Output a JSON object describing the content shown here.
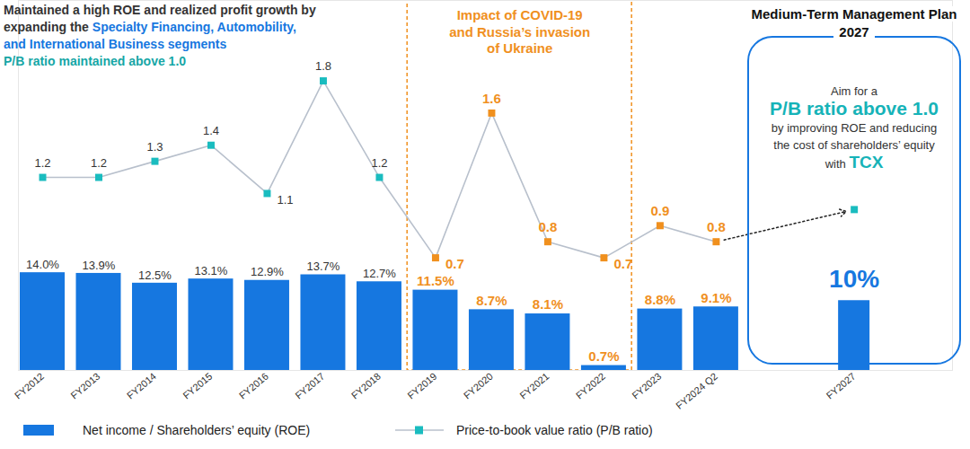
{
  "chart_data": {
    "type": "bar",
    "headline": [
      [
        {
          "text": "Maintained a high ROE and realized profit growth by expanding the"
        },
        {
          "text": "Specialty Financing, Automobility, and International Business segments",
          "color": "#1677e0"
        }
      ],
      [
        {
          "text": "P/B ratio maintained above 1.0",
          "color": "#16a6a6"
        }
      ]
    ],
    "period_annotation": {
      "text": [
        "Impact of COVID-19",
        "and Russia’s invasion",
        "of Ukraine"
      ],
      "categories": [
        "FY2019",
        "FY2022"
      ],
      "color": "#f0901e"
    },
    "plan_annotation": {
      "category": "FY2027",
      "title": [
        "Medium-Term Management Plan",
        "2027"
      ],
      "color": "#1677e0",
      "lines": [
        [
          {
            "text": "Aim for a"
          }
        ],
        [
          {
            "text": "P/B ratio above 1.0",
            "color": "#16b3b8"
          }
        ],
        [
          {
            "text": "by improving ROE and reducing"
          }
        ],
        [
          {
            "text": "the cost of shareholders’ equity"
          }
        ],
        [
          {
            "text": "with"
          },
          {
            "text": "TCX",
            "color": "#16b3b8"
          }
        ]
      ]
    },
    "categories": [
      "FY2012",
      "FY2013",
      "FY2014",
      "FY2015",
      "FY2016",
      "FY2017",
      "FY2018",
      "FY2019",
      "FY2020",
      "FY2021",
      "FY2022",
      "FY2023",
      "FY2024 Q2",
      "FY2027"
    ],
    "series": [
      {
        "name": "Net income / Shareholders’ equity (ROE)",
        "type": "bar",
        "color": "#1677e0",
        "values": [
          14.0,
          13.9,
          12.5,
          13.1,
          12.9,
          13.7,
          12.7,
          11.5,
          8.7,
          8.1,
          0.7,
          8.8,
          9.1,
          10
        ],
        "value_labels": [
          "14.0%",
          "13.9%",
          "12.5%",
          "13.1%",
          "12.9%",
          "13.7%",
          "12.7%",
          "11.5%",
          "8.7%",
          "8.1%",
          "0.7%",
          "8.8%",
          "9.1%",
          "10%"
        ]
      },
      {
        "name": "Price-to-book value ratio (P/B ratio)",
        "type": "line",
        "axis": "y2",
        "color": "#b8c0cc",
        "marker": "square",
        "colors": [
          "#1abcbf",
          "#1abcbf",
          "#1abcbf",
          "#1abcbf",
          "#1abcbf",
          "#1abcbf",
          "#1abcbf",
          "#f0901e",
          "#f0901e",
          "#f0901e",
          "#f0901e",
          "#f0901e",
          "#f0901e",
          "#1abcbf"
        ],
        "values": [
          1.2,
          1.2,
          1.3,
          1.4,
          1.1,
          1.8,
          1.2,
          0.7,
          1.6,
          0.8,
          0.7,
          0.9,
          0.8,
          1.0
        ],
        "value_labels": [
          "1.2",
          "1.2",
          "1.3",
          "1.4",
          "1.1",
          "1.8",
          "1.2",
          "0.7",
          "1.6",
          "0.8",
          "0.7",
          "0.9",
          "0.8",
          null
        ]
      }
    ],
    "ylim": [
      0,
      53
    ],
    "yticks": [],
    "y2lim": [
      0,
      2.3
    ],
    "y2ticks": [],
    "data_labels": true,
    "tick_labels": "x",
    "legend": "bottom"
  }
}
